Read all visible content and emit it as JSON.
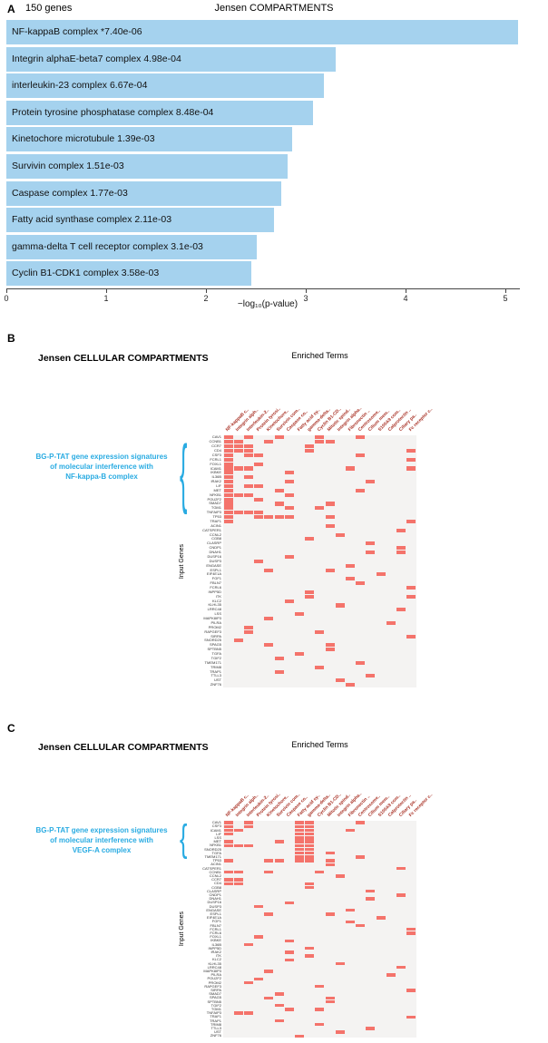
{
  "chart_data": [
    {
      "type": "bar",
      "panel": "A",
      "annotation": "150 genes",
      "title": "Jensen COMPARTMENTS",
      "categories": [
        "NF-kappaB complex",
        "Integrin alphaE-beta7 complex",
        "interleukin-23 complex",
        "Protein tyrosine phosphatase complex",
        "Kinetochore microtubule",
        "Survivin complex",
        "Caspase complex",
        "Fatty acid synthase complex",
        "gamma-delta T cell receptor complex",
        "Cyclin B1-CDK1 complex"
      ],
      "pvalues": [
        "*7.40e-06",
        "4.98e-04",
        "6.67e-04",
        "8.48e-04",
        "1.39e-03",
        "1.51e-03",
        "1.77e-03",
        "2.11e-03",
        "3.1e-03",
        "3.58e-03"
      ],
      "values": [
        5.13,
        3.3,
        3.18,
        3.07,
        2.86,
        2.82,
        2.75,
        2.68,
        2.51,
        2.45
      ],
      "xlabel": "−log₁₀(p-value)",
      "xticks": [
        0,
        1,
        2,
        3,
        4,
        5
      ],
      "xlim": [
        0,
        5.2
      ],
      "bar_color": "#a5d2ee",
      "legend": "none",
      "grid": "off"
    },
    {
      "type": "heatmap",
      "panel": "B",
      "title": "Jensen CELLULAR COMPARTMENTS",
      "subtitle": "Enriched Terms",
      "ylabel": "Input Genes",
      "cell_color": "#f4736b",
      "annotation": {
        "lines": [
          "BG-P-TAT gene expression signatures",
          "of molecular interference with",
          "NF-kappa-B complex"
        ],
        "color": "#29abe2",
        "brace_glyph": "{"
      },
      "columns": [
        "NF-kappaB c..",
        "Integrin alph..",
        "Interleukin-2..",
        "Protein tyrosi..",
        "Kinetochore..",
        "Survivin com..",
        "Caspase co..",
        "Fatty acid sy..",
        "gamma-delta..",
        "Cyclin B1-CD..",
        "Mitotic spind..",
        "Integrin alpha..",
        "Fibronectin ..",
        "Centrosome..",
        "Cilium mem..",
        "S100A9 com..",
        "Calprotectin ..",
        "Ciliary pa..",
        "Fc receptor c.."
      ],
      "rows": [
        "CAV1",
        "CCNB1",
        "CCR7",
        "CD4",
        "CSF3",
        "FCRL1",
        "FOXL1",
        "ICAM1",
        "IKBKE",
        "IL36B",
        "IRAK2",
        "LIF",
        "MET",
        "NFKB1",
        "POU2F2",
        "SMAD7",
        "TGM1",
        "TNFAIP3",
        "TP53",
        "TRAF1",
        "ACIN1",
        "CATSPER1",
        "CCNL2",
        "CGB8",
        "CLASRP",
        "CNDP1",
        "DNAH1",
        "DUSP16",
        "DUSP3",
        "ENGASE",
        "ESPL1",
        "EIF4E1A",
        "FGF1",
        "FBLN7",
        "FCRL6",
        "INPP5D",
        "ITK",
        "KLC2",
        "KLHL35",
        "LRRC48",
        "LSS",
        "MAPK8IP3",
        "PILRA",
        "PROM2",
        "RAPGEF3",
        "SIRPA",
        "SNORD25",
        "SPAG5",
        "SPTBN5",
        "TGFA",
        "TGIF2",
        "TMEM171",
        "TRIM8",
        "TRAP1",
        "TTLL3",
        "UST",
        "ZNF76"
      ],
      "cells": [
        [
          0,
          2,
          5,
          9,
          13
        ],
        [
          0,
          1,
          4,
          9,
          10
        ],
        [
          0,
          1,
          2,
          8
        ],
        [
          0,
          1,
          2,
          8,
          18
        ],
        [
          0,
          2,
          3,
          13
        ],
        [
          0,
          18
        ],
        [
          0,
          3
        ],
        [
          0,
          1,
          2,
          12,
          18
        ],
        [
          0,
          6
        ],
        [
          0,
          2
        ],
        [
          0,
          6,
          14
        ],
        [
          0,
          2,
          3
        ],
        [
          0,
          5,
          13
        ],
        [
          0,
          1,
          2,
          6
        ],
        [
          0,
          3
        ],
        [
          0,
          5,
          10
        ],
        [
          0,
          6,
          9
        ],
        [
          0,
          1,
          2,
          3
        ],
        [
          0,
          3,
          4,
          5,
          6,
          10
        ],
        [
          0,
          18
        ],
        [
          10
        ],
        [
          17
        ],
        [
          11
        ],
        [
          8
        ],
        [
          14
        ],
        [
          17
        ],
        [
          14,
          17
        ],
        [
          6
        ],
        [
          3
        ],
        [
          12
        ],
        [
          4,
          10
        ],
        [
          15
        ],
        [
          12
        ],
        [
          13
        ],
        [
          18
        ],
        [
          8
        ],
        [
          8,
          18
        ],
        [
          6
        ],
        [
          11
        ],
        [
          17
        ],
        [
          7
        ],
        [
          4
        ],
        [
          16
        ],
        [
          2
        ],
        [
          2,
          9
        ],
        [
          18
        ],
        [
          1
        ],
        [
          4,
          10
        ],
        [
          10
        ],
        [
          7
        ],
        [
          5
        ],
        [
          13
        ],
        [
          9
        ],
        [
          5
        ],
        [
          14
        ],
        [
          11
        ],
        [
          12
        ]
      ]
    },
    {
      "type": "heatmap",
      "panel": "C",
      "title": "Jensen CELLULAR COMPARTMENTS",
      "subtitle": "Enriched Terms",
      "ylabel": "Input Genes",
      "cell_color": "#f4736b",
      "annotation": {
        "lines": [
          "BG-P-TAT gene expression signatures",
          "of molecular interference with",
          "VEGF-A complex"
        ],
        "color": "#29abe2",
        "brace_glyph": "{"
      },
      "columns": [
        "NF-kappaB c..",
        "Integrin alph..",
        "Interleukin-2..",
        "Protein tyrosi..",
        "Kinetochore..",
        "Survivin com..",
        "Caspase co..",
        "Fatty acid sy..",
        "gamma-delta..",
        "Cyclin B1-CD..",
        "Mitotic spind..",
        "Integrin alpha..",
        "Fibronectin ..",
        "Centrosome..",
        "Cilium mem..",
        "S100A9 com..",
        "Calprotectin ..",
        "Ciliary pa..",
        "Fc receptor c.."
      ],
      "rows": [
        "CAV1",
        "CSF3",
        "ICAM1",
        "LIF",
        "LSS",
        "MET",
        "NFKB1",
        "SNORD25",
        "TGFA",
        "TMEM171",
        "TP53",
        "ACIN1",
        "CATSPER1",
        "CCNB1",
        "CCNL2",
        "CCR7",
        "CD4",
        "CGB8",
        "CLASRP",
        "CNDP1",
        "DNAH1",
        "DUSP16",
        "DUSP3",
        "ENGASE",
        "ESPL1",
        "EIF4E1A",
        "FGF1",
        "FBLN7",
        "FCRL1",
        "FCRL6",
        "FOXL1",
        "IKBKE",
        "IL36B",
        "INPP5D",
        "IRAK2",
        "ITK",
        "KLC2",
        "KLHL35",
        "LRRC48",
        "MAPK8IP3",
        "PILRA",
        "POU2F2",
        "PROM2",
        "RAPGEF3",
        "SIRPA",
        "SMAD7",
        "SPAG5",
        "SPTBN5",
        "TGIF2",
        "TGM1",
        "TNFAIP3",
        "TRAF1",
        "TRAP1",
        "TRIM8",
        "TTLL3",
        "UST",
        "ZNF76"
      ],
      "cells": [
        [
          0,
          2,
          7,
          8,
          13
        ],
        [
          0,
          2,
          7,
          8
        ],
        [
          0,
          1,
          7,
          8,
          12
        ],
        [
          0,
          7,
          8
        ],
        [
          7,
          8
        ],
        [
          0,
          5,
          7,
          8
        ],
        [
          0,
          1,
          2,
          7,
          8
        ],
        [
          7,
          8
        ],
        [
          7,
          8,
          10
        ],
        [
          7,
          8,
          13
        ],
        [
          0,
          4,
          5,
          7,
          8,
          10
        ],
        [
          10
        ],
        [
          17
        ],
        [
          0,
          1,
          4,
          9
        ],
        [
          11
        ],
        [
          0,
          1
        ],
        [
          0,
          1,
          8
        ],
        [
          8
        ],
        [
          14
        ],
        [
          17
        ],
        [
          14
        ],
        [
          6
        ],
        [
          3
        ],
        [
          12
        ],
        [
          4,
          10
        ],
        [
          15
        ],
        [
          12
        ],
        [
          13
        ],
        [
          18
        ],
        [
          18
        ],
        [
          3
        ],
        [
          6
        ],
        [
          2
        ],
        [
          8
        ],
        [
          6
        ],
        [
          8
        ],
        [
          6
        ],
        [
          11
        ],
        [
          17
        ],
        [
          4
        ],
        [
          16
        ],
        [
          3
        ],
        [
          2
        ],
        [
          9
        ],
        [
          18
        ],
        [
          5
        ],
        [
          4,
          10
        ],
        [
          10
        ],
        [
          5
        ],
        [
          6,
          9
        ],
        [
          1,
          2
        ],
        [
          18
        ],
        [
          5
        ],
        [
          9
        ],
        [
          14
        ],
        [
          11
        ],
        [
          7
        ]
      ]
    }
  ]
}
